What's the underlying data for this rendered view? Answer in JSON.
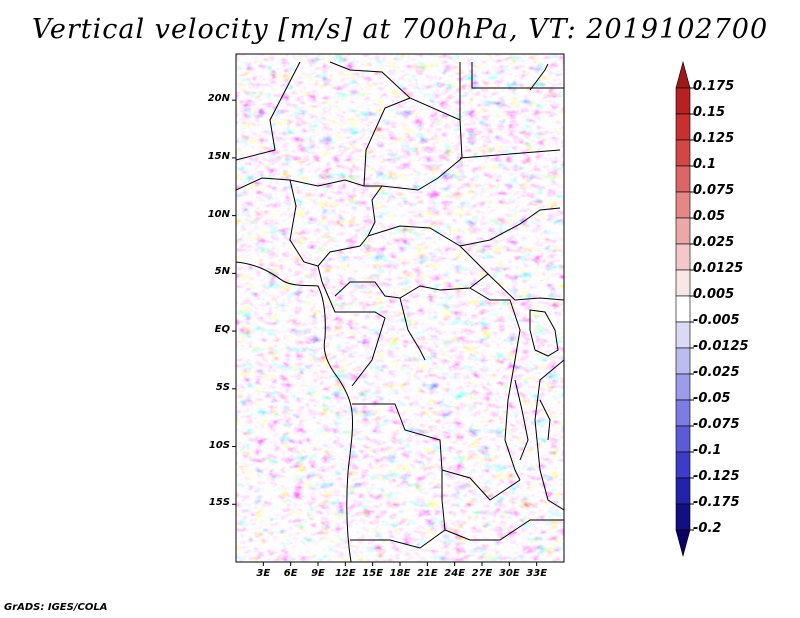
{
  "title": "Vertical velocity [m/s] at 700hPa, VT: 2019102700",
  "credit": "GrADS: IGES/COLA",
  "map": {
    "region": "Central Africa",
    "variable": "Vertical velocity",
    "lon_range": [
      0,
      36
    ],
    "lat_range": [
      -20,
      24
    ],
    "lat_ticks": [
      {
        "lat": 20,
        "label": "20N"
      },
      {
        "lat": 15,
        "label": "15N"
      },
      {
        "lat": 10,
        "label": "10N"
      },
      {
        "lat": 5,
        "label": "5N"
      },
      {
        "lat": 0,
        "label": "EQ"
      },
      {
        "lat": -5,
        "label": "5S"
      },
      {
        "lat": -10,
        "label": "10S"
      },
      {
        "lat": -15,
        "label": "15S"
      }
    ],
    "lon_ticks": [
      {
        "lon": 3,
        "label": "3E"
      },
      {
        "lon": 6,
        "label": "6E"
      },
      {
        "lon": 9,
        "label": "9E"
      },
      {
        "lon": 12,
        "label": "12E"
      },
      {
        "lon": 15,
        "label": "15E"
      },
      {
        "lon": 18,
        "label": "18E"
      },
      {
        "lon": 21,
        "label": "21E"
      },
      {
        "lon": 24,
        "label": "24E"
      },
      {
        "lon": 27,
        "label": "27E"
      },
      {
        "lon": 30,
        "label": "30E"
      },
      {
        "lon": 33,
        "label": "33E"
      }
    ],
    "colorbar": {
      "labels": [
        "0.175",
        "0.15",
        "0.125",
        "0.1",
        "0.075",
        "0.05",
        "0.025",
        "0.0125",
        "0.005",
        "-0.005",
        "-0.0125",
        "-0.025",
        "-0.05",
        "-0.075",
        "-0.1",
        "-0.125",
        "-0.175",
        "-0.2"
      ],
      "colors": [
        "#a01717",
        "#b82121",
        "#c83030",
        "#d24646",
        "#dc6565",
        "#e48787",
        "#eda7a7",
        "#f4c8c8",
        "#fae6e6",
        "#ffffff",
        "#dadaf6",
        "#bcbcf0",
        "#9c9cea",
        "#7c7ce2",
        "#5b5bd8",
        "#3c3cc8",
        "#2222aa",
        "#120f80",
        "#0a0066"
      ]
    }
  }
}
